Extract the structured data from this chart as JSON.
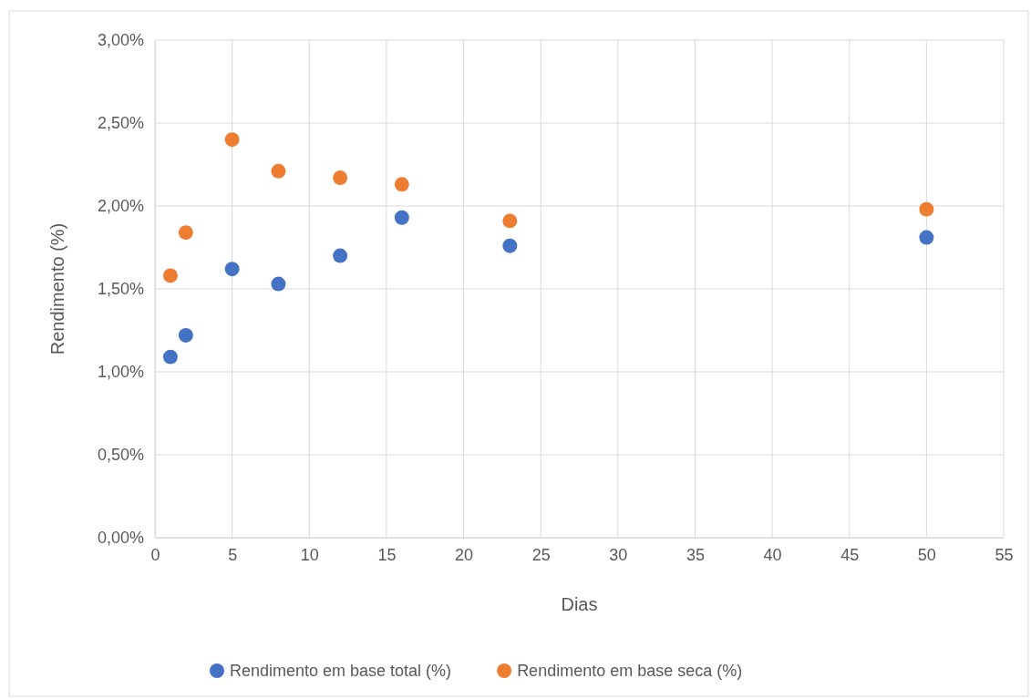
{
  "chart_data": {
    "type": "scatter",
    "xlabel": "Dias",
    "ylabel": "Rendimento (%)",
    "xlim": [
      0,
      55
    ],
    "xticks": [
      0,
      5,
      10,
      15,
      20,
      25,
      30,
      35,
      40,
      45,
      50,
      55
    ],
    "ylim": [
      0,
      3
    ],
    "yticks": [
      {
        "value": 0,
        "label": "0,00%"
      },
      {
        "value": 0.5,
        "label": "0,50%"
      },
      {
        "value": 1,
        "label": "1,00%"
      },
      {
        "value": 1.5,
        "label": "1,50%"
      },
      {
        "value": 2,
        "label": "2,00%"
      },
      {
        "value": 2.5,
        "label": "2,50%"
      },
      {
        "value": 3,
        "label": "3,00%"
      }
    ],
    "grid": true,
    "legend": "bottom",
    "marker": "circle",
    "series": [
      {
        "name": "Rendimento em base total (%)",
        "color": "#4472c4",
        "x": [
          1,
          2,
          5,
          8,
          12,
          16,
          23,
          50
        ],
        "values": [
          1.09,
          1.22,
          1.62,
          1.53,
          1.7,
          1.93,
          1.76,
          1.81
        ]
      },
      {
        "name": "Rendimento em base seca (%)",
        "color": "#ed7d31",
        "x": [
          1,
          2,
          5,
          8,
          12,
          16,
          23,
          50
        ],
        "values": [
          1.58,
          1.84,
          2.4,
          2.21,
          2.17,
          2.13,
          1.91,
          1.98
        ]
      }
    ]
  }
}
